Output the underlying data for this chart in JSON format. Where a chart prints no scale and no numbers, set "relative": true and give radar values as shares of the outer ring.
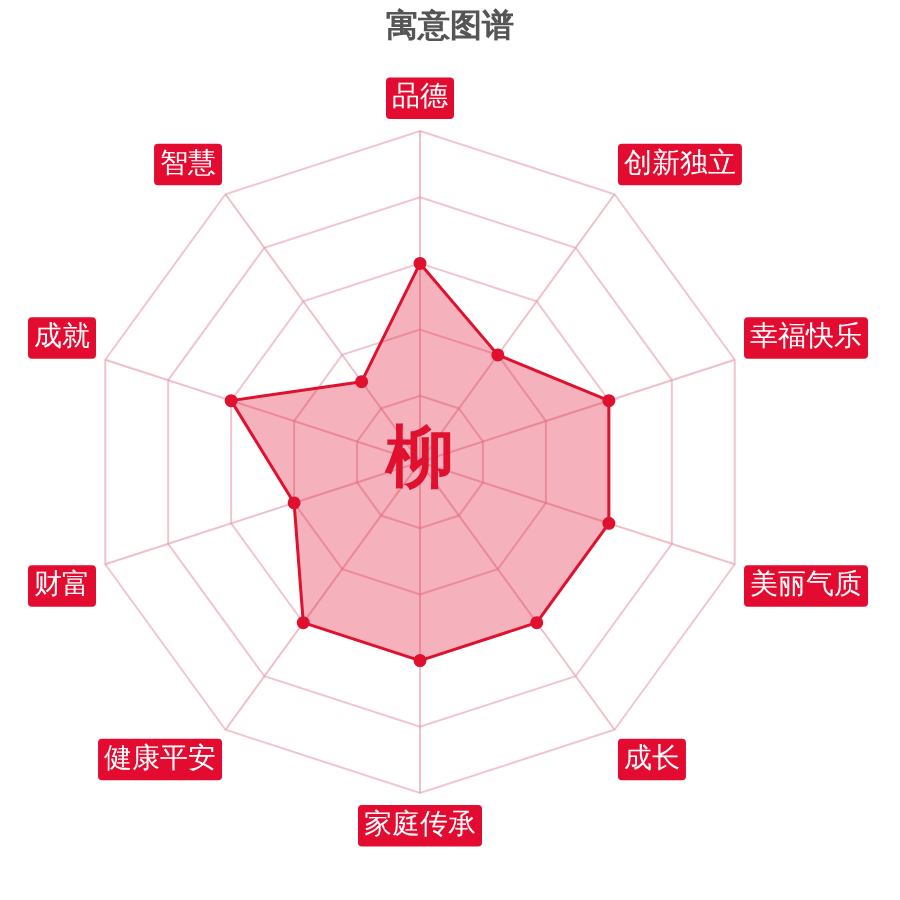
{
  "chart_data": {
    "type": "radar",
    "title": "寓意图谱",
    "categories": [
      "品德",
      "创新独立",
      "幸福快乐",
      "美丽气质",
      "成长",
      "家庭传承",
      "健康平安",
      "财富",
      "成就",
      "智慧"
    ],
    "series": [
      {
        "color": "#e0102f",
        "values": [
          0.6,
          0.4,
          0.6,
          0.6,
          0.6,
          0.6,
          0.6,
          0.4,
          0.6,
          0.3
        ]
      }
    ],
    "relative": true,
    "grid": true,
    "marker": "circle",
    "annotations": [
      "柳"
    ]
  }
}
